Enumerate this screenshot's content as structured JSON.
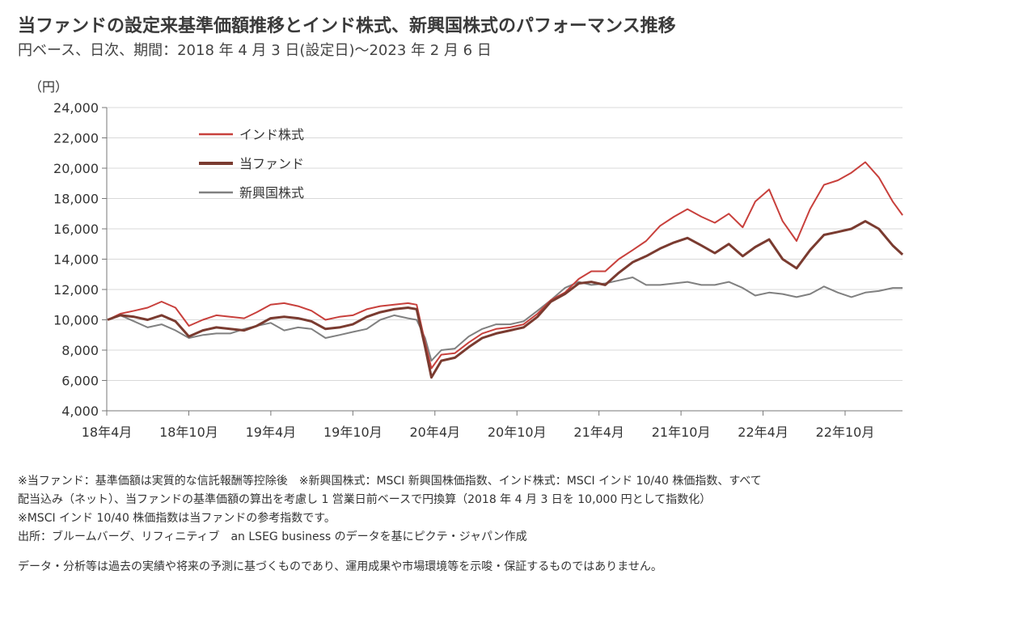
{
  "header": {
    "title": "当ファンドの設定来基準価額推移とインド株式、新興国株式のパフォーマンス推移",
    "subtitle": "円ベース、日次、期間：2018 年 4 月 3 日(設定日)～2023 年 2 月 6 日"
  },
  "chart_data": {
    "type": "line",
    "ylabel": "（円）",
    "xlabel": "",
    "ylim": [
      4000,
      24000
    ],
    "y_ticks": [
      "4,000",
      "6,000",
      "8,000",
      "10,000",
      "12,000",
      "14,000",
      "16,000",
      "18,000",
      "20,000",
      "22,000",
      "24,000"
    ],
    "x_ticks": [
      "18年4月",
      "18年10月",
      "19年4月",
      "19年10月",
      "20年4月",
      "20年10月",
      "21年4月",
      "21年10月",
      "22年4月",
      "22年10月"
    ],
    "x_start": "2018-04-03",
    "x_end": "2023-02-06",
    "grid": true,
    "legend_position": "top-left",
    "series": [
      {
        "name": "インド株式",
        "color": "#c8403c",
        "points": [
          [
            "2018-04-03",
            10000
          ],
          [
            "2018-05-01",
            10400
          ],
          [
            "2018-06-01",
            10600
          ],
          [
            "2018-07-01",
            10800
          ],
          [
            "2018-08-01",
            11200
          ],
          [
            "2018-09-01",
            10800
          ],
          [
            "2018-10-01",
            9600
          ],
          [
            "2018-11-01",
            10000
          ],
          [
            "2018-12-01",
            10300
          ],
          [
            "2019-01-01",
            10200
          ],
          [
            "2019-02-01",
            10100
          ],
          [
            "2019-03-01",
            10500
          ],
          [
            "2019-04-01",
            11000
          ],
          [
            "2019-05-01",
            11100
          ],
          [
            "2019-06-01",
            10900
          ],
          [
            "2019-07-01",
            10600
          ],
          [
            "2019-08-01",
            10000
          ],
          [
            "2019-09-01",
            10200
          ],
          [
            "2019-10-01",
            10300
          ],
          [
            "2019-11-01",
            10700
          ],
          [
            "2019-12-01",
            10900
          ],
          [
            "2020-01-01",
            11000
          ],
          [
            "2020-02-01",
            11100
          ],
          [
            "2020-02-20",
            11000
          ],
          [
            "2020-03-10",
            8500
          ],
          [
            "2020-03-24",
            6800
          ],
          [
            "2020-04-15",
            7700
          ],
          [
            "2020-05-15",
            7800
          ],
          [
            "2020-06-15",
            8500
          ],
          [
            "2020-07-15",
            9100
          ],
          [
            "2020-08-15",
            9400
          ],
          [
            "2020-09-15",
            9500
          ],
          [
            "2020-10-15",
            9700
          ],
          [
            "2020-11-15",
            10400
          ],
          [
            "2020-12-15",
            11300
          ],
          [
            "2021-01-15",
            11800
          ],
          [
            "2021-02-15",
            12700
          ],
          [
            "2021-03-15",
            13200
          ],
          [
            "2021-04-15",
            13200
          ],
          [
            "2021-05-15",
            14000
          ],
          [
            "2021-06-15",
            14600
          ],
          [
            "2021-07-15",
            15200
          ],
          [
            "2021-08-15",
            16200
          ],
          [
            "2021-09-15",
            16800
          ],
          [
            "2021-10-15",
            17300
          ],
          [
            "2021-11-15",
            16800
          ],
          [
            "2021-12-15",
            16400
          ],
          [
            "2022-01-15",
            17000
          ],
          [
            "2022-02-15",
            16100
          ],
          [
            "2022-03-15",
            17800
          ],
          [
            "2022-04-15",
            18600
          ],
          [
            "2022-05-15",
            16500
          ],
          [
            "2022-06-15",
            15200
          ],
          [
            "2022-07-15",
            17300
          ],
          [
            "2022-08-15",
            18900
          ],
          [
            "2022-09-15",
            19200
          ],
          [
            "2022-10-15",
            19700
          ],
          [
            "2022-11-15",
            20400
          ],
          [
            "2022-12-15",
            19400
          ],
          [
            "2023-01-15",
            17800
          ],
          [
            "2023-02-06",
            16900
          ]
        ]
      },
      {
        "name": "当ファンド",
        "color": "#7a3b30",
        "points": [
          [
            "2018-04-03",
            10000
          ],
          [
            "2018-05-01",
            10300
          ],
          [
            "2018-06-01",
            10200
          ],
          [
            "2018-07-01",
            10000
          ],
          [
            "2018-08-01",
            10300
          ],
          [
            "2018-09-01",
            9900
          ],
          [
            "2018-10-01",
            8900
          ],
          [
            "2018-11-01",
            9300
          ],
          [
            "2018-12-01",
            9500
          ],
          [
            "2019-01-01",
            9400
          ],
          [
            "2019-02-01",
            9300
          ],
          [
            "2019-03-01",
            9600
          ],
          [
            "2019-04-01",
            10100
          ],
          [
            "2019-05-01",
            10200
          ],
          [
            "2019-06-01",
            10100
          ],
          [
            "2019-07-01",
            9900
          ],
          [
            "2019-08-01",
            9400
          ],
          [
            "2019-09-01",
            9500
          ],
          [
            "2019-10-01",
            9700
          ],
          [
            "2019-11-01",
            10200
          ],
          [
            "2019-12-01",
            10500
          ],
          [
            "2020-01-01",
            10700
          ],
          [
            "2020-02-01",
            10800
          ],
          [
            "2020-02-20",
            10700
          ],
          [
            "2020-03-10",
            8200
          ],
          [
            "2020-03-24",
            6200
          ],
          [
            "2020-04-15",
            7300
          ],
          [
            "2020-05-15",
            7500
          ],
          [
            "2020-06-15",
            8200
          ],
          [
            "2020-07-15",
            8800
          ],
          [
            "2020-08-15",
            9100
          ],
          [
            "2020-09-15",
            9300
          ],
          [
            "2020-10-15",
            9500
          ],
          [
            "2020-11-15",
            10200
          ],
          [
            "2020-12-15",
            11200
          ],
          [
            "2021-01-15",
            11700
          ],
          [
            "2021-02-15",
            12400
          ],
          [
            "2021-03-15",
            12500
          ],
          [
            "2021-04-15",
            12300
          ],
          [
            "2021-05-15",
            13100
          ],
          [
            "2021-06-15",
            13800
          ],
          [
            "2021-07-15",
            14200
          ],
          [
            "2021-08-15",
            14700
          ],
          [
            "2021-09-15",
            15100
          ],
          [
            "2021-10-15",
            15400
          ],
          [
            "2021-11-15",
            14900
          ],
          [
            "2021-12-15",
            14400
          ],
          [
            "2022-01-15",
            15000
          ],
          [
            "2022-02-15",
            14200
          ],
          [
            "2022-03-15",
            14800
          ],
          [
            "2022-04-15",
            15300
          ],
          [
            "2022-05-15",
            14000
          ],
          [
            "2022-06-15",
            13400
          ],
          [
            "2022-07-15",
            14600
          ],
          [
            "2022-08-15",
            15600
          ],
          [
            "2022-09-15",
            15800
          ],
          [
            "2022-10-15",
            16000
          ],
          [
            "2022-11-15",
            16500
          ],
          [
            "2022-12-15",
            16000
          ],
          [
            "2023-01-15",
            14900
          ],
          [
            "2023-02-06",
            14300
          ]
        ]
      },
      {
        "name": "新興国株式",
        "color": "#808080",
        "points": [
          [
            "2018-04-03",
            10000
          ],
          [
            "2018-05-01",
            10300
          ],
          [
            "2018-06-01",
            9900
          ],
          [
            "2018-07-01",
            9500
          ],
          [
            "2018-08-01",
            9700
          ],
          [
            "2018-09-01",
            9300
          ],
          [
            "2018-10-01",
            8800
          ],
          [
            "2018-11-01",
            9000
          ],
          [
            "2018-12-01",
            9100
          ],
          [
            "2019-01-01",
            9100
          ],
          [
            "2019-02-01",
            9400
          ],
          [
            "2019-03-01",
            9600
          ],
          [
            "2019-04-01",
            9800
          ],
          [
            "2019-05-01",
            9300
          ],
          [
            "2019-06-01",
            9500
          ],
          [
            "2019-07-01",
            9400
          ],
          [
            "2019-08-01",
            8800
          ],
          [
            "2019-09-01",
            9000
          ],
          [
            "2019-10-01",
            9200
          ],
          [
            "2019-11-01",
            9400
          ],
          [
            "2019-12-01",
            10000
          ],
          [
            "2020-01-01",
            10300
          ],
          [
            "2020-02-01",
            10100
          ],
          [
            "2020-02-20",
            10000
          ],
          [
            "2020-03-10",
            8800
          ],
          [
            "2020-03-24",
            7300
          ],
          [
            "2020-04-15",
            8000
          ],
          [
            "2020-05-15",
            8100
          ],
          [
            "2020-06-15",
            8900
          ],
          [
            "2020-07-15",
            9400
          ],
          [
            "2020-08-15",
            9700
          ],
          [
            "2020-09-15",
            9700
          ],
          [
            "2020-10-15",
            9900
          ],
          [
            "2020-11-15",
            10600
          ],
          [
            "2020-12-15",
            11300
          ],
          [
            "2021-01-15",
            12100
          ],
          [
            "2021-02-15",
            12500
          ],
          [
            "2021-03-15",
            12300
          ],
          [
            "2021-04-15",
            12400
          ],
          [
            "2021-05-15",
            12600
          ],
          [
            "2021-06-15",
            12800
          ],
          [
            "2021-07-15",
            12300
          ],
          [
            "2021-08-15",
            12300
          ],
          [
            "2021-09-15",
            12400
          ],
          [
            "2021-10-15",
            12500
          ],
          [
            "2021-11-15",
            12300
          ],
          [
            "2021-12-15",
            12300
          ],
          [
            "2022-01-15",
            12500
          ],
          [
            "2022-02-15",
            12100
          ],
          [
            "2022-03-15",
            11600
          ],
          [
            "2022-04-15",
            11800
          ],
          [
            "2022-05-15",
            11700
          ],
          [
            "2022-06-15",
            11500
          ],
          [
            "2022-07-15",
            11700
          ],
          [
            "2022-08-15",
            12200
          ],
          [
            "2022-09-15",
            11800
          ],
          [
            "2022-10-15",
            11500
          ],
          [
            "2022-11-15",
            11800
          ],
          [
            "2022-12-15",
            11900
          ],
          [
            "2023-01-15",
            12100
          ],
          [
            "2023-02-06",
            12100
          ]
        ]
      }
    ]
  },
  "notes": [
    "※当ファンド：基準価額は実質的な信託報酬等控除後　※新興国株式：MSCI 新興国株価指数、インド株式：MSCI インド 10/40 株価指数、すべて",
    "配当込み（ネット）、当ファンドの基準価額の算出を考慮し 1 営業日前ベースで円換算（2018 年 4 月 3 日を 10,000 円として指数化）",
    "※MSCI インド 10/40 株価指数は当ファンドの参考指数です。",
    "出所：ブルームバーグ、リフィニティブ　an LSEG business のデータを基にピクテ・ジャパン作成"
  ],
  "disclaimer": "データ・分析等は過去の実績や将来の予測に基づくものであり、運用成果や市場環境等を示唆・保証するものではありません。"
}
